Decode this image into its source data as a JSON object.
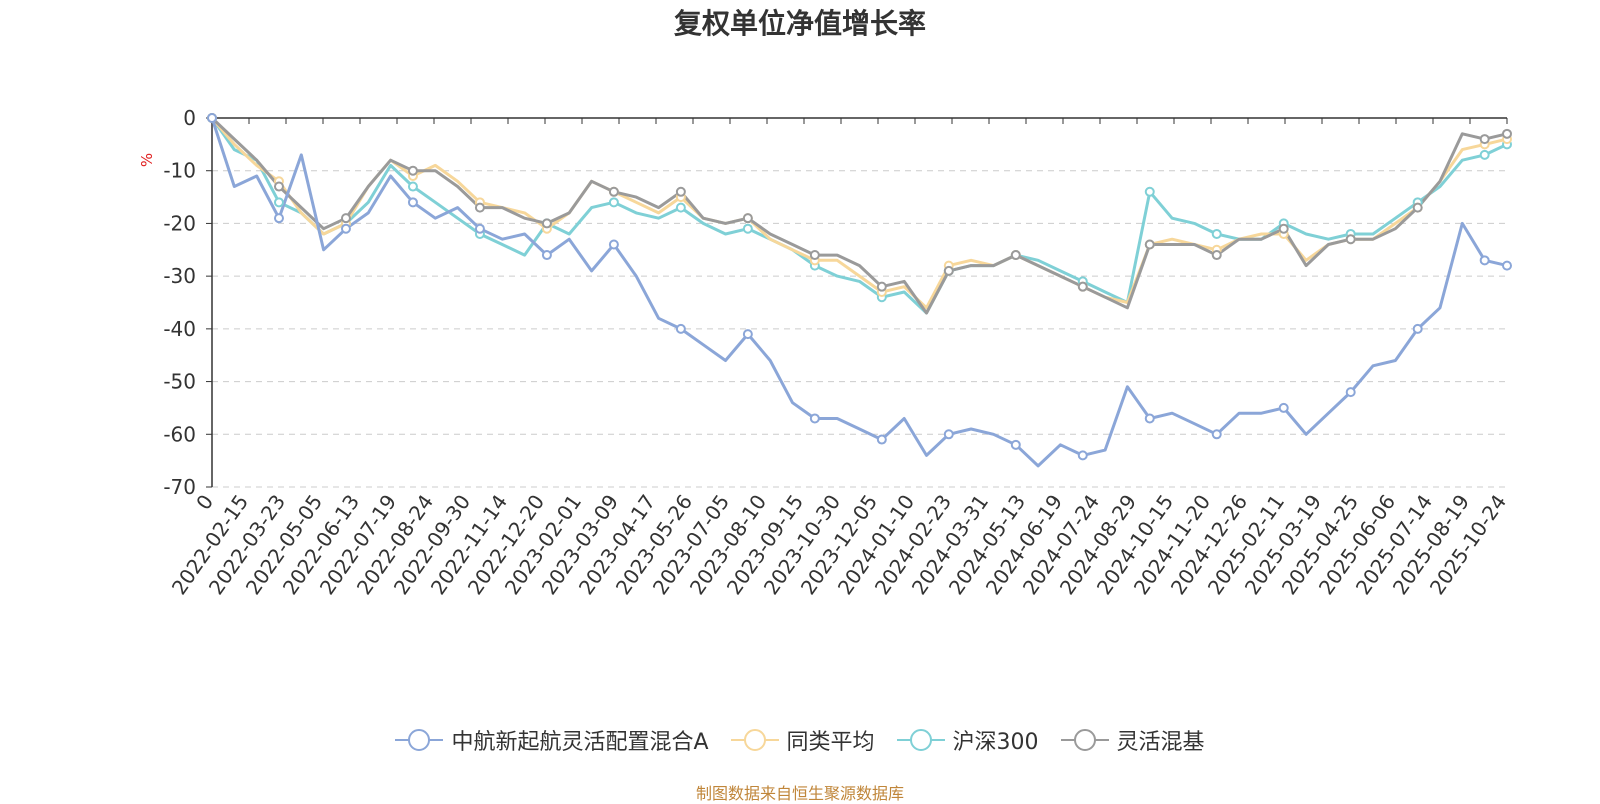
{
  "chart_data": {
    "type": "line",
    "title": "复权单位净值增长率",
    "ylabel": "%",
    "ylim": [
      -70,
      0
    ],
    "yticks": [
      0,
      -10,
      -20,
      -30,
      -40,
      -50,
      -60,
      -70
    ],
    "grid": true,
    "legend_position": "bottom",
    "x_origin_label": "0",
    "x_tick_labels": [
      "2022-02-15",
      "2022-03-23",
      "2022-05-05",
      "2022-06-13",
      "2022-07-19",
      "2022-08-24",
      "2022-09-30",
      "2022-11-14",
      "2022-12-20",
      "2023-02-01",
      "2023-03-09",
      "2023-04-17",
      "2023-05-26",
      "2023-07-05",
      "2023-08-10",
      "2023-09-15",
      "2023-10-30",
      "2023-12-05",
      "2024-01-10",
      "2024-02-23",
      "2024-03-31",
      "2024-05-13",
      "2024-06-19",
      "2024-07-24",
      "2024-08-29",
      "2024-10-15",
      "2024-11-20",
      "2024-12-26",
      "2025-02-11",
      "2025-03-19",
      "2025-04-25",
      "2025-06-06",
      "2025-07-14",
      "2025-08-19",
      "2025-10-24"
    ],
    "series": [
      {
        "name": "中航新起航灵活配置混合A",
        "color": "#8ba6d8",
        "values": [
          0,
          -13,
          -11,
          -19,
          -7,
          -25,
          -21,
          -18,
          -11,
          -16,
          -19,
          -17,
          -21,
          -23,
          -22,
          -26,
          -23,
          -29,
          -24,
          -30,
          -38,
          -40,
          -43,
          -46,
          -41,
          -46,
          -54,
          -57,
          -57,
          -59,
          -61,
          -57,
          -64,
          -60,
          -59,
          -60,
          -62,
          -66,
          -62,
          -64,
          -63,
          -51,
          -57,
          -56,
          -58,
          -60,
          -56,
          -56,
          -55,
          -60,
          -56,
          -52,
          -47,
          -46,
          -40,
          -36,
          -20,
          -27,
          -28
        ]
      },
      {
        "name": "同类平均",
        "color": "#f7d79a",
        "values": [
          0,
          -5,
          -9,
          -12,
          -18,
          -22,
          -20,
          -13,
          -8,
          -11,
          -9,
          -12,
          -16,
          -17,
          -18,
          -21,
          -18,
          -12,
          -14,
          -16,
          -18,
          -15,
          -19,
          -20,
          -19,
          -23,
          -25,
          -27,
          -27,
          -30,
          -33,
          -32,
          -36,
          -28,
          -27,
          -28,
          -26,
          -28,
          -30,
          -32,
          -34,
          -35,
          -24,
          -23,
          -24,
          -25,
          -23,
          -22,
          -22,
          -27,
          -24,
          -23,
          -23,
          -20,
          -17,
          -12,
          -6,
          -5,
          -4
        ]
      },
      {
        "name": "沪深300",
        "color": "#7fd0d6",
        "values": [
          0,
          -6,
          -8,
          -16,
          -18,
          -22,
          -20,
          -16,
          -9,
          -13,
          -16,
          -19,
          -22,
          -24,
          -26,
          -20,
          -22,
          -17,
          -16,
          -18,
          -19,
          -17,
          -20,
          -22,
          -21,
          -23,
          -25,
          -28,
          -30,
          -31,
          -34,
          -33,
          -37,
          -29,
          -28,
          -28,
          -26,
          -27,
          -29,
          -31,
          -33,
          -35,
          -14,
          -19,
          -20,
          -22,
          -23,
          -23,
          -20,
          -22,
          -23,
          -22,
          -22,
          -19,
          -16,
          -13,
          -8,
          -7,
          -5
        ]
      },
      {
        "name": "灵活混基",
        "color": "#9a9a9a",
        "values": [
          0,
          -4,
          -8,
          -13,
          -17,
          -21,
          -19,
          -13,
          -8,
          -10,
          -10,
          -13,
          -17,
          -17,
          -19,
          -20,
          -18,
          -12,
          -14,
          -15,
          -17,
          -14,
          -19,
          -20,
          -19,
          -22,
          -24,
          -26,
          -26,
          -28,
          -32,
          -31,
          -37,
          -29,
          -28,
          -28,
          -26,
          -28,
          -30,
          -32,
          -34,
          -36,
          -24,
          -24,
          -24,
          -26,
          -23,
          -23,
          -21,
          -28,
          -24,
          -23,
          -23,
          -21,
          -17,
          -12,
          -3,
          -4,
          -3
        ]
      }
    ]
  },
  "footer": {
    "source": "制图数据来自恒生聚源数据库"
  }
}
